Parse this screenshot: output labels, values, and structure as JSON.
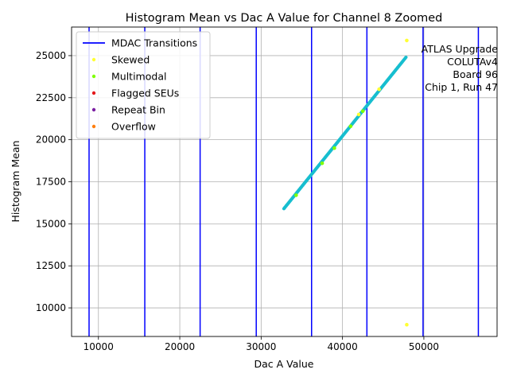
{
  "chart_data": {
    "type": "scatter",
    "title": "Histogram Mean vs Dac A Value for Channel 8 Zoomed",
    "xlabel": "Dac A Value",
    "ylabel": "Histogram Mean",
    "xlim": [
      6700,
      59000
    ],
    "ylim": [
      8300,
      26700
    ],
    "xticks": [
      10000,
      20000,
      30000,
      40000,
      50000
    ],
    "xtick_labels": [
      "10000",
      "20000",
      "30000",
      "40000",
      "50000"
    ],
    "yticks": [
      10000,
      12500,
      15000,
      17500,
      20000,
      22500,
      25000
    ],
    "ytick_labels": [
      "10000",
      "12500",
      "15000",
      "17500",
      "20000",
      "22500",
      "25000"
    ],
    "grid": true,
    "legend_position": "top-left",
    "annotation_lines": [
      "ATLAS Upgrade",
      "COLUTAv4",
      "Board 96",
      "Chip 1, Run 47"
    ],
    "mdac_transitions": {
      "name": "MDAC Transitions",
      "color": "#0000ff",
      "x": [
        8850,
        15700,
        22500,
        29400,
        36200,
        43000,
        49900,
        56700
      ]
    },
    "main_series": {
      "color": "#17becf",
      "x_start": 32800,
      "x_end": 47800,
      "y_start": 15900,
      "y_end": 24900
    },
    "series": [
      {
        "name": "Skewed",
        "color": "#ffff33",
        "points": [
          [
            47900,
            25900
          ],
          [
            47900,
            9000
          ],
          [
            42000,
            21500
          ],
          [
            44500,
            23000
          ]
        ]
      },
      {
        "name": "Multimodal",
        "color": "#7fff00",
        "points": [
          [
            34300,
            16700
          ],
          [
            37500,
            18600
          ],
          [
            39000,
            19500
          ],
          [
            41000,
            20800
          ],
          [
            42500,
            21700
          ]
        ]
      },
      {
        "name": "Flagged SEUs",
        "color": "#e41a1c",
        "points": []
      },
      {
        "name": "Repeat Bin",
        "color": "#7b1fa2",
        "points": []
      },
      {
        "name": "Overflow",
        "color": "#ff7f0e",
        "points": []
      }
    ]
  }
}
